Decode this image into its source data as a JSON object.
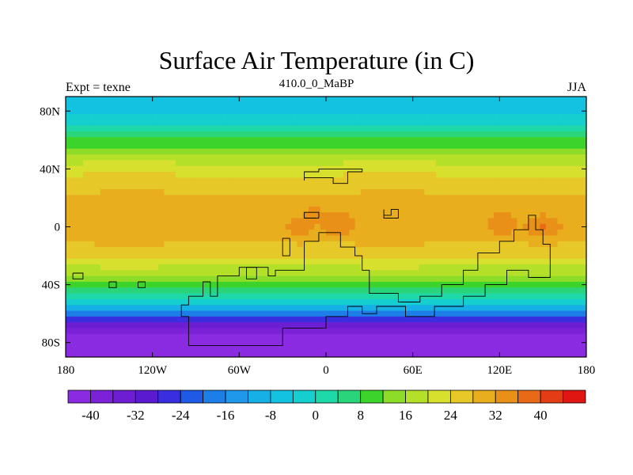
{
  "chart_data": {
    "type": "heatmap",
    "title": "Surface Air Temperature (in C)",
    "subtitle": "410.0_0_MaBP",
    "left_label": "Expt = texne",
    "right_label": "JJA",
    "x_ticks": [
      {
        "value": -180,
        "label": "180"
      },
      {
        "value": -120,
        "label": "120W"
      },
      {
        "value": -60,
        "label": "60W"
      },
      {
        "value": 0,
        "label": "0"
      },
      {
        "value": 60,
        "label": "60E"
      },
      {
        "value": 120,
        "label": "120E"
      },
      {
        "value": 180,
        "label": "180"
      }
    ],
    "y_ticks": [
      {
        "value": 80,
        "label": "80N"
      },
      {
        "value": 40,
        "label": "40N"
      },
      {
        "value": 0,
        "label": "0"
      },
      {
        "value": -40,
        "label": "40S"
      },
      {
        "value": -80,
        "label": "80S"
      }
    ],
    "xlim": [
      -180,
      180
    ],
    "ylim": [
      -90,
      90
    ],
    "colorbar": {
      "levels": [
        -44,
        -40,
        -36,
        -32,
        -28,
        -24,
        -20,
        -16,
        -12,
        -8,
        -4,
        0,
        4,
        8,
        12,
        16,
        20,
        24,
        28,
        32,
        36,
        40,
        44
      ],
      "labels": [
        "-40",
        "-32",
        "-24",
        "-16",
        "-8",
        "0",
        "8",
        "16",
        "24",
        "32",
        "40"
      ],
      "label_values": [
        -40,
        -32,
        -24,
        -16,
        -8,
        0,
        8,
        16,
        24,
        32,
        40
      ],
      "colors": [
        "#8a2be2",
        "#7b22d8",
        "#6e1ed2",
        "#5a1ad0",
        "#3a2fe0",
        "#1e5ae6",
        "#1e7ee8",
        "#1e98ea",
        "#17b0e6",
        "#12c2e0",
        "#15cece",
        "#1fd8a8",
        "#2ad47a",
        "#3cd42a",
        "#8cdc28",
        "#b4e02a",
        "#d8e02e",
        "#e6c828",
        "#e8ae1e",
        "#e89018",
        "#e86a16",
        "#e43c14",
        "#e01612"
      ]
    },
    "zonal_profile": [
      {
        "lat": 90,
        "temp": -8
      },
      {
        "lat": 80,
        "temp": -6
      },
      {
        "lat": 70,
        "temp": -1
      },
      {
        "lat": 60,
        "temp": 8
      },
      {
        "lat": 50,
        "temp": 16
      },
      {
        "lat": 40,
        "temp": 22
      },
      {
        "lat": 30,
        "temp": 26
      },
      {
        "lat": 20,
        "temp": 28
      },
      {
        "lat": 10,
        "temp": 29
      },
      {
        "lat": 0,
        "temp": 29
      },
      {
        "lat": -10,
        "temp": 28
      },
      {
        "lat": -20,
        "temp": 24
      },
      {
        "lat": -30,
        "temp": 18
      },
      {
        "lat": -40,
        "temp": 10
      },
      {
        "lat": -50,
        "temp": 0
      },
      {
        "lat": -60,
        "temp": -20
      },
      {
        "lat": -70,
        "temp": -38
      },
      {
        "lat": -80,
        "temp": -44
      },
      {
        "lat": -90,
        "temp": -46
      }
    ],
    "hotspots": [
      {
        "lon": 8,
        "lat": 2,
        "temp": 36
      },
      {
        "lon": -18,
        "lat": 0,
        "temp": 34
      },
      {
        "lon": -8,
        "lat": 8,
        "temp": 33
      },
      {
        "lon": 122,
        "lat": 2,
        "temp": 35
      },
      {
        "lon": 150,
        "lat": 0,
        "temp": 36
      },
      {
        "lon": 40,
        "lat": 12,
        "temp": 32
      }
    ],
    "coastlines": [
      [
        [
          -15,
          32
        ],
        [
          -15,
          38
        ],
        [
          -5,
          38
        ],
        [
          -5,
          40
        ],
        [
          25,
          40
        ],
        [
          25,
          38
        ],
        [
          15,
          38
        ],
        [
          15,
          30
        ],
        [
          5,
          30
        ],
        [
          5,
          34
        ],
        [
          -15,
          34
        ],
        [
          -15,
          32
        ]
      ],
      [
        [
          -15,
          -18
        ],
        [
          -15,
          -30
        ],
        [
          -35,
          -30
        ],
        [
          -35,
          -34
        ],
        [
          -40,
          -34
        ],
        [
          -40,
          -28
        ],
        [
          -60,
          -28
        ],
        [
          -60,
          -34
        ],
        [
          -75,
          -34
        ],
        [
          -75,
          -48
        ],
        [
          -80,
          -48
        ],
        [
          -80,
          -38
        ],
        [
          -85,
          -38
        ],
        [
          -85,
          -48
        ],
        [
          -95,
          -48
        ],
        [
          -95,
          -54
        ],
        [
          -100,
          -54
        ],
        [
          -100,
          -62
        ],
        [
          -95,
          -62
        ],
        [
          -95,
          -82
        ],
        [
          -30,
          -82
        ],
        [
          -30,
          -70
        ],
        [
          0,
          -70
        ],
        [
          0,
          -62
        ],
        [
          15,
          -62
        ],
        [
          15,
          -55
        ],
        [
          25,
          -55
        ],
        [
          25,
          -60
        ],
        [
          35,
          -60
        ],
        [
          35,
          -55
        ],
        [
          55,
          -55
        ],
        [
          55,
          -62
        ],
        [
          75,
          -62
        ],
        [
          75,
          -55
        ],
        [
          95,
          -55
        ],
        [
          95,
          -48
        ],
        [
          110,
          -48
        ],
        [
          110,
          -40
        ],
        [
          125,
          -40
        ],
        [
          125,
          -30
        ],
        [
          140,
          -30
        ],
        [
          140,
          -35
        ],
        [
          155,
          -35
        ],
        [
          155,
          -12
        ],
        [
          150,
          -12
        ],
        [
          150,
          -2
        ],
        [
          145,
          -2
        ],
        [
          145,
          8
        ],
        [
          140,
          8
        ],
        [
          140,
          -2
        ],
        [
          130,
          -2
        ],
        [
          130,
          -10
        ],
        [
          120,
          -10
        ],
        [
          120,
          -18
        ],
        [
          105,
          -18
        ],
        [
          105,
          -30
        ],
        [
          95,
          -30
        ],
        [
          95,
          -40
        ],
        [
          80,
          -40
        ],
        [
          80,
          -48
        ],
        [
          65,
          -48
        ],
        [
          65,
          -52
        ],
        [
          50,
          -52
        ],
        [
          50,
          -46
        ],
        [
          30,
          -46
        ],
        [
          30,
          -30
        ],
        [
          25,
          -30
        ],
        [
          25,
          -20
        ],
        [
          20,
          -20
        ],
        [
          20,
          -14
        ],
        [
          10,
          -14
        ],
        [
          10,
          -4
        ],
        [
          -5,
          -4
        ],
        [
          -5,
          -10
        ],
        [
          -15,
          -10
        ],
        [
          -15,
          -18
        ]
      ],
      [
        [
          -25,
          -8
        ],
        [
          -25,
          -20
        ],
        [
          -30,
          -20
        ],
        [
          -30,
          -8
        ],
        [
          -25,
          -8
        ]
      ],
      [
        [
          -55,
          -28
        ],
        [
          -55,
          -36
        ],
        [
          -48,
          -36
        ],
        [
          -48,
          -28
        ],
        [
          -55,
          -28
        ]
      ],
      [
        [
          -175,
          -32
        ],
        [
          -175,
          -36
        ],
        [
          -168,
          -36
        ],
        [
          -168,
          -32
        ],
        [
          -175,
          -32
        ]
      ],
      [
        [
          -150,
          -38
        ],
        [
          -150,
          -42
        ],
        [
          -145,
          -42
        ],
        [
          -145,
          -38
        ],
        [
          -150,
          -38
        ]
      ],
      [
        [
          -130,
          -38
        ],
        [
          -130,
          -42
        ],
        [
          -125,
          -42
        ],
        [
          -125,
          -38
        ],
        [
          -130,
          -38
        ]
      ],
      [
        [
          -5,
          6
        ],
        [
          -5,
          10
        ],
        [
          -15,
          10
        ],
        [
          -15,
          6
        ],
        [
          -5,
          6
        ]
      ],
      [
        [
          40,
          12
        ],
        [
          40,
          8
        ],
        [
          45,
          8
        ],
        [
          45,
          12
        ],
        [
          50,
          12
        ],
        [
          50,
          6
        ],
        [
          40,
          6
        ],
        [
          40,
          12
        ]
      ]
    ]
  }
}
